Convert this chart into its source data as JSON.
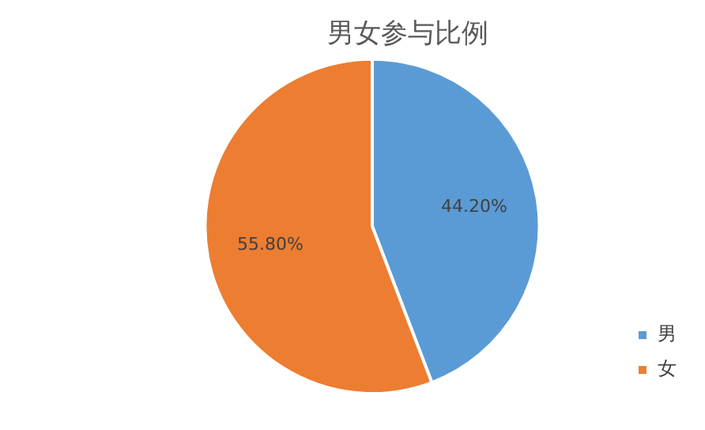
{
  "chart_data": {
    "type": "pie",
    "title": "男女参与比例",
    "categories": [
      "男",
      "女"
    ],
    "values": [
      44.2,
      55.8
    ],
    "colors": [
      "#5b9bd5",
      "#ed7d31"
    ],
    "value_labels": [
      "44.20%",
      "55.80%"
    ],
    "legend": "bottom right"
  }
}
